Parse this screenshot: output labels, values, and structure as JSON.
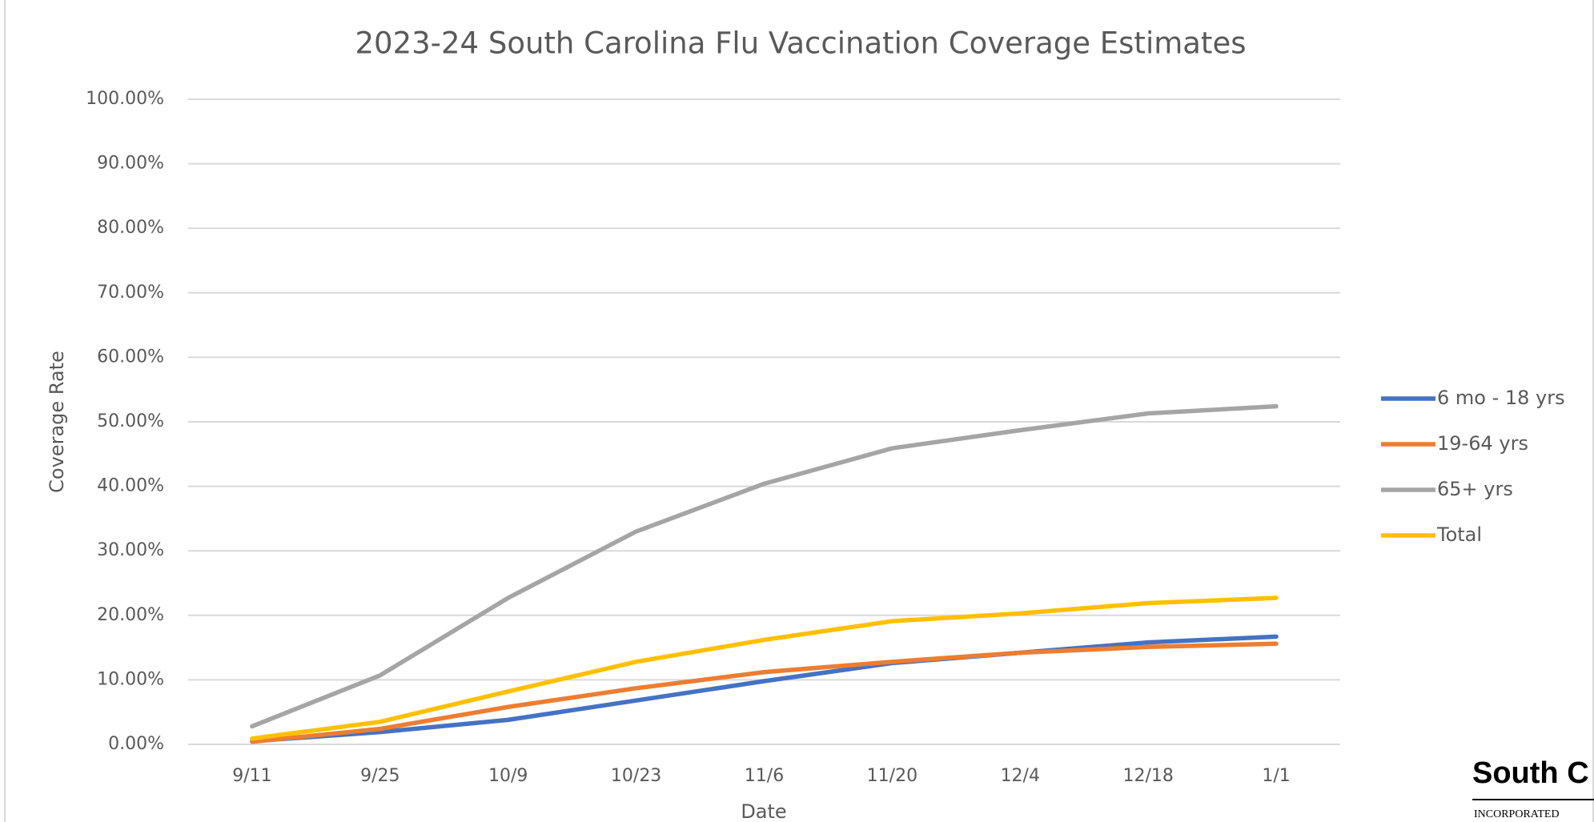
{
  "chart_data": {
    "type": "line",
    "title": "2023-24 South Carolina Flu Vaccination Coverage Estimates",
    "x_label": "Date",
    "y_label": "Coverage Rate",
    "categories": [
      "9/11",
      "9/25",
      "10/9",
      "10/23",
      "11/6",
      "11/20",
      "12/4",
      "12/18",
      "1/1"
    ],
    "series": [
      {
        "name": "6 mo - 18 yrs",
        "color": "#4472c4",
        "values": [
          0.5,
          1.9,
          3.8,
          6.8,
          9.8,
          12.6,
          14.2,
          15.8,
          16.7
        ]
      },
      {
        "name": "19-64 yrs",
        "color": "#ed7d31",
        "values": [
          0.4,
          2.4,
          5.8,
          8.7,
          11.2,
          12.8,
          14.2,
          15.1,
          15.6
        ]
      },
      {
        "name": "65+ yrs",
        "color": "#a5a5a5",
        "values": [
          2.8,
          10.7,
          22.7,
          33.0,
          40.4,
          45.9,
          48.7,
          51.3,
          52.4
        ]
      },
      {
        "name": "Total",
        "color": "#ffc000",
        "values": [
          0.9,
          3.5,
          8.2,
          12.8,
          16.2,
          19.1,
          20.3,
          21.9,
          22.7
        ]
      }
    ],
    "ylim": [
      0,
      100
    ],
    "yticks": [
      {
        "value": 0,
        "label": "0.00%"
      },
      {
        "value": 10,
        "label": "10.00%"
      },
      {
        "value": 20,
        "label": "20.00%"
      },
      {
        "value": 30,
        "label": "30.00%"
      },
      {
        "value": 40,
        "label": "40.00%"
      },
      {
        "value": 50,
        "label": "50.00%"
      },
      {
        "value": 60,
        "label": "60.00%"
      },
      {
        "value": 70,
        "label": "70.00%"
      },
      {
        "value": 80,
        "label": "80.00%"
      },
      {
        "value": 90,
        "label": "90.00%"
      },
      {
        "value": 100,
        "label": "100.00%"
      }
    ],
    "grid": true,
    "legend": "right"
  },
  "logo": {
    "name": "South C",
    "tagline": "INCORPORATED"
  }
}
